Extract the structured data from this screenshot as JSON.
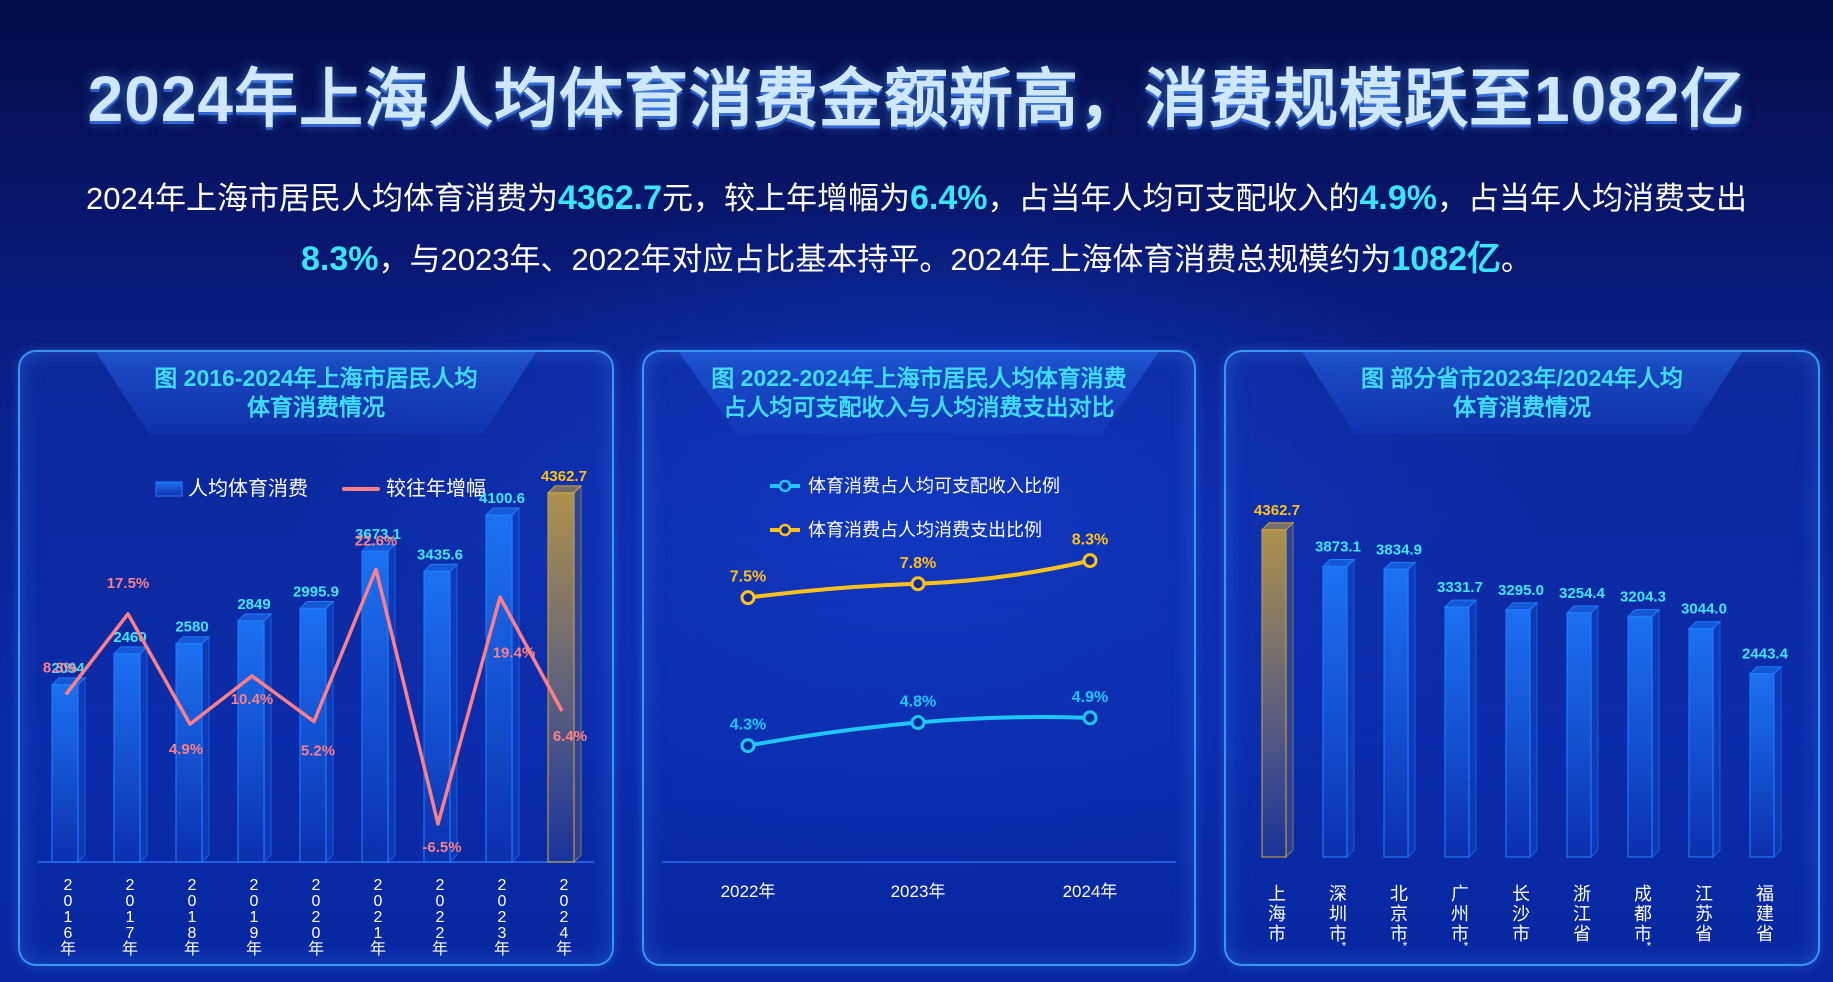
{
  "headline": "2024年上海人均体育消费金额新高，消费规模跃至1082亿",
  "summary": {
    "p1": "2024年上海市居民人均体育消费为",
    "v1": "4362.7",
    "p2": "元，较上年增幅为",
    "v2": "6.4%",
    "p3": "，占当年人均可支配收入的",
    "v3": "4.9%",
    "p4": "，占当年人均消费支出",
    "v4": "8.3%",
    "p5": "，与2023年、2022年对应占比基本持平。2024年上海体育消费总规模约为",
    "v5": "1082亿",
    "p6": "。"
  },
  "chart_data": [
    {
      "type": "bar",
      "title_line1": "图 2016-2024年上海市居民人均",
      "title_line2": "体育消费情况",
      "legend_position": "top",
      "categories": [
        "2016年",
        "2017年",
        "2018年",
        "2019年",
        "2020年",
        "2021年",
        "2022年",
        "2023年",
        "2024年"
      ],
      "series": [
        {
          "name": "人均体育消费",
          "kind": "bar",
          "values": [
            2094,
            2460,
            2580,
            2849,
            2995.9,
            3673.1,
            3435.6,
            4100.6,
            4362.7
          ],
          "labels": [
            "2094",
            "2460",
            "2580",
            "2849",
            "2995.9",
            "3673.1",
            "3435.6",
            "4100.6",
            "4362.7"
          ],
          "color": "#1e7dff",
          "highlight_color": "#c9a23a"
        },
        {
          "name": "较往年增幅",
          "kind": "line",
          "values": [
            8.3,
            17.5,
            4.9,
            10.4,
            5.2,
            22.6,
            -6.5,
            19.4,
            6.4
          ],
          "labels": [
            "8.3%",
            "17.5%",
            "4.9%",
            "10.4%",
            "5.2%",
            "22.6%",
            "-6.5%",
            "19.4%",
            "6.4%"
          ],
          "color": "#ff7f86"
        }
      ],
      "ylim_bar": [
        0,
        5200
      ],
      "ylim_line": [
        -8,
        28
      ]
    },
    {
      "type": "line",
      "title_line1": "图 2022-2024年上海市居民人均体育消费",
      "title_line2": "占人均可支配收入与人均消费支出对比",
      "legend_position": "top-left",
      "categories": [
        "2022年",
        "2023年",
        "2024年"
      ],
      "series": [
        {
          "name": "体育消费占人均可支配收入比例",
          "values": [
            4.3,
            4.8,
            4.9
          ],
          "labels": [
            "4.3%",
            "4.8%",
            "4.9%"
          ],
          "color": "#1ec8ff"
        },
        {
          "name": "体育消费占人均消费支出比例",
          "values": [
            7.5,
            7.8,
            8.3
          ],
          "labels": [
            "7.5%",
            "7.8%",
            "8.3%"
          ],
          "color": "#ffc21a"
        }
      ],
      "ylim": [
        2,
        10
      ]
    },
    {
      "type": "bar",
      "title_line1": "图 部分省市2023年/2024年人均",
      "title_line2": "体育消费情况",
      "categories": [
        "上海市",
        "深圳市*",
        "北京市*",
        "广州市*",
        "长沙市",
        "浙江省",
        "成都市*",
        "江苏省",
        "福建省"
      ],
      "values": [
        4362.7,
        3873.1,
        3834.9,
        3331.7,
        3295.0,
        3254.4,
        3204.3,
        3044.0,
        2443.4
      ],
      "labels": [
        "4362.7",
        "3873.1",
        "3834.9",
        "3331.7",
        "3295.0",
        "3254.4",
        "3204.3",
        "3044.0",
        "2443.4"
      ],
      "highlight_index": 0,
      "color": "#1e7dff",
      "highlight_color": "#c9a23a",
      "ylim": [
        0,
        5000
      ]
    }
  ]
}
